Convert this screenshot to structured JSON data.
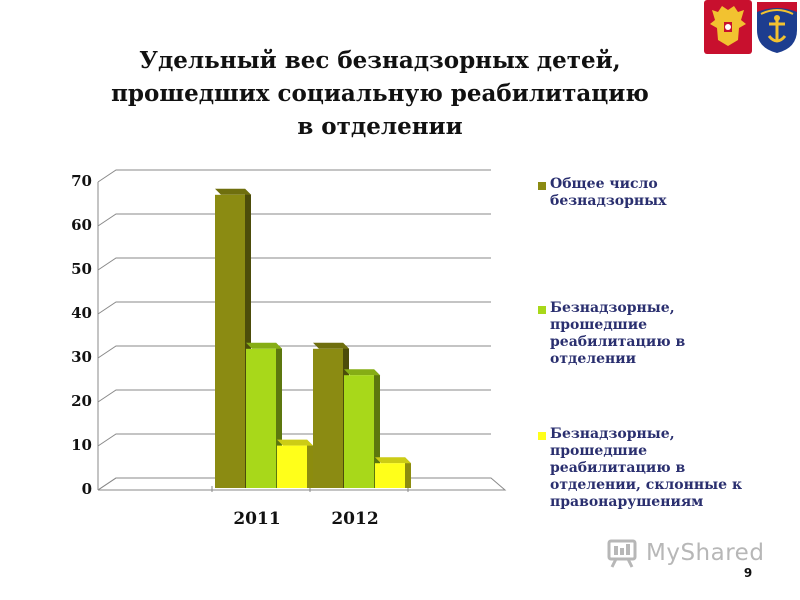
{
  "slide": {
    "title_lines": [
      "Удельный вес безнадзорных детей,",
      "прошедших социальную реабилитацию",
      "в отделении"
    ],
    "page_number": "9",
    "watermark_text": "MyShared"
  },
  "emblems": [
    {
      "name": "russian-coat-of-arms",
      "color": "#c8102e",
      "accent": "#f2c230"
    },
    {
      "name": "murmansk-oblast-coat-of-arms",
      "color": "#c8102e",
      "accent": "#1d3d8f"
    }
  ],
  "chart_data": {
    "type": "bar",
    "title": "Удельный вес безнадзорных детей, прошедших социальную реабилитацию в отделении",
    "categories": [
      "2011",
      "2012"
    ],
    "series": [
      {
        "name": "Общее число безнадзорных",
        "values": [
          68,
          33
        ],
        "color": "#8b8b12"
      },
      {
        "name": "Безнадзорные, прошедшие реабилитацию в отделении",
        "values": [
          33,
          27
        ],
        "color": "#a8d81a"
      },
      {
        "name": "Безнадзорные, прошедшие реабилитацию в отделении, склонные к правонарушениям",
        "values": [
          11,
          7
        ],
        "color": "#ffff1a"
      }
    ],
    "ylim": [
      0,
      70
    ],
    "yticks": [
      "0",
      "10",
      "20",
      "30",
      "40",
      "50",
      "60",
      "70"
    ],
    "grid": true,
    "style": "3d-column",
    "legend_position": "right"
  }
}
